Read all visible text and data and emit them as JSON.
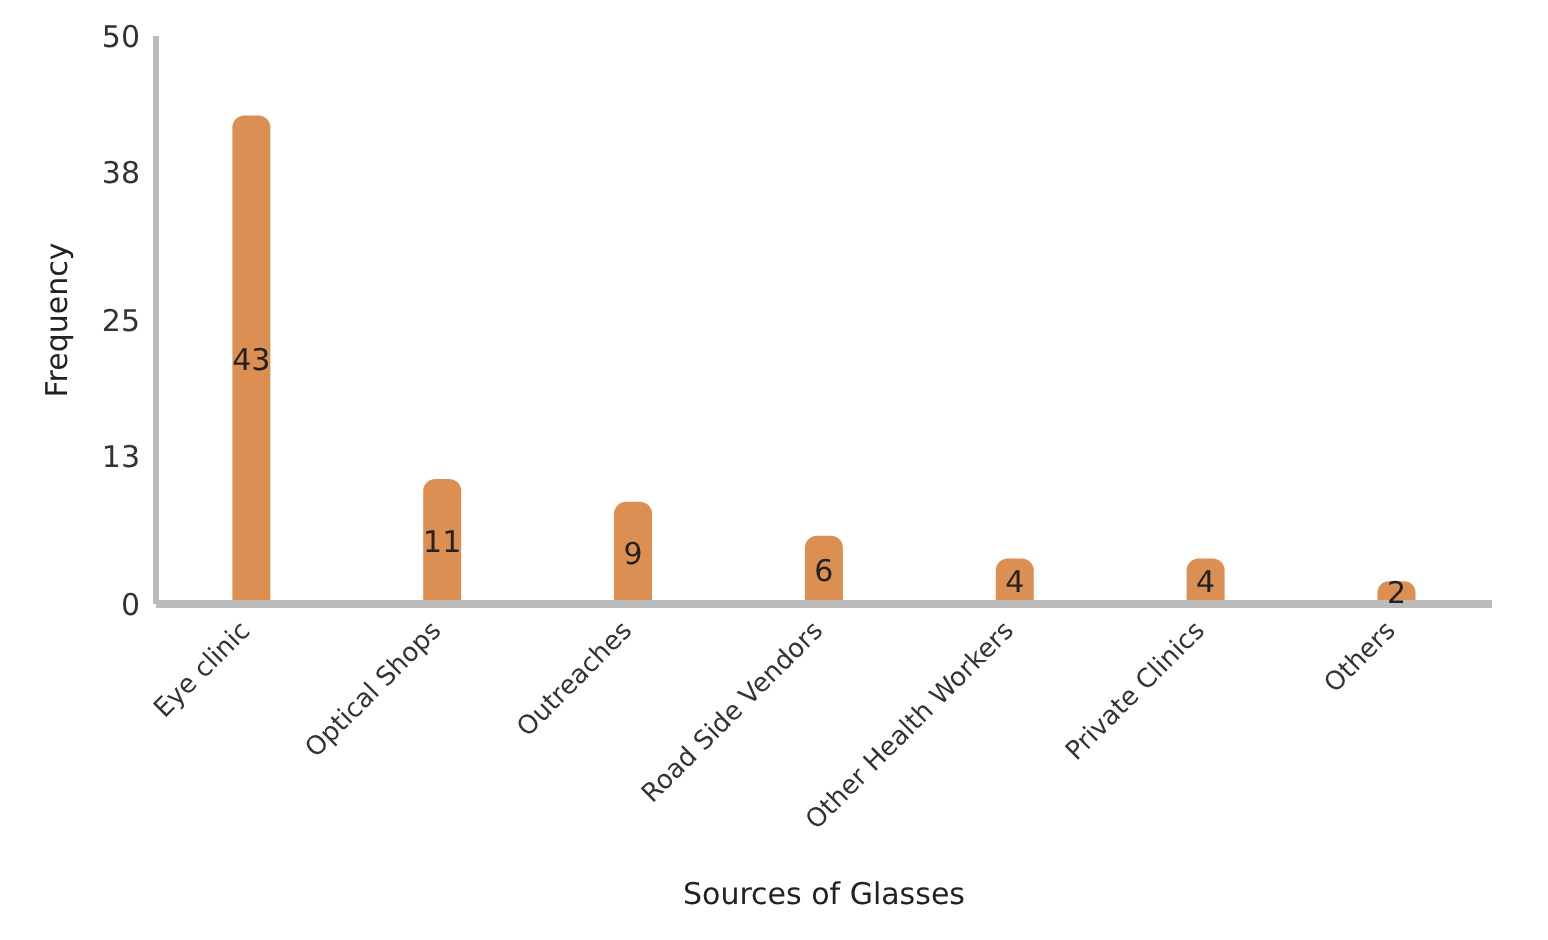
{
  "chart_data": {
    "type": "bar",
    "xlabel": "Sources of Glasses",
    "ylabel": "Frequency",
    "categories": [
      "Eye clinic",
      "Optical Shops",
      "Outreaches",
      "Road Side Vendors",
      "Other Health Workers",
      "Private Clinics",
      "Others"
    ],
    "values": [
      43,
      11,
      9,
      6,
      4,
      4,
      2
    ],
    "color": "#dc8f52",
    "ylim": [
      0,
      50
    ],
    "yticks": [
      0,
      13,
      25,
      38,
      50
    ],
    "grid": false,
    "data_labels": true,
    "legend": false
  }
}
